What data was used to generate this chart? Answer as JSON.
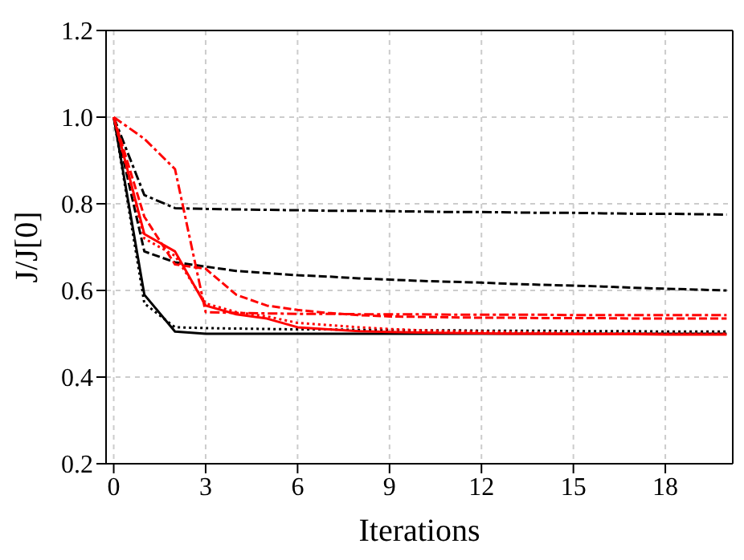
{
  "chart_data": {
    "type": "line",
    "xlabel": "Iterations",
    "ylabel": "J/J[0]",
    "x": [
      0,
      1,
      2,
      3,
      4,
      5,
      6,
      7,
      8,
      9,
      10,
      11,
      12,
      13,
      14,
      15,
      16,
      17,
      18,
      19,
      20
    ],
    "xlim": [
      -0.25,
      20.2
    ],
    "xticks": [
      0,
      3,
      6,
      9,
      12,
      15,
      18
    ],
    "ylim": [
      0.2,
      1.2
    ],
    "yticks": [
      0.2,
      0.4,
      0.6,
      0.8,
      {
        "value": 1,
        "label": "1.0"
      },
      1.2
    ],
    "grid": true,
    "legend": false,
    "marker": "none",
    "series": [
      {
        "color": "#000000",
        "line_style": "solid",
        "values": [
          1,
          0.59,
          0.505,
          0.5,
          0.5,
          0.5,
          0.5,
          0.5,
          0.5,
          0.5,
          0.5,
          0.5,
          0.5,
          0.5,
          0.5,
          0.5,
          0.5,
          0.5,
          0.5,
          0.5,
          0.5
        ]
      },
      {
        "color": "#000000",
        "line_style": "dotted",
        "values": [
          1,
          0.57,
          0.515,
          0.513,
          0.512,
          0.511,
          0.51,
          0.51,
          0.509,
          0.509,
          0.508,
          0.508,
          0.507,
          0.507,
          0.507,
          0.506,
          0.506,
          0.506,
          0.505,
          0.505,
          0.505
        ]
      },
      {
        "color": "#000000",
        "line_style": "dashdot",
        "values": [
          1,
          0.82,
          0.79,
          0.788,
          0.787,
          0.786,
          0.785,
          0.784,
          0.784,
          0.783,
          0.782,
          0.781,
          0.781,
          0.78,
          0.779,
          0.779,
          0.778,
          0.777,
          0.777,
          0.776,
          0.775
        ]
      },
      {
        "color": "#000000",
        "line_style": "dashed",
        "values": [
          1,
          0.69,
          0.665,
          0.655,
          0.645,
          0.64,
          0.635,
          0.632,
          0.628,
          0.625,
          0.622,
          0.62,
          0.618,
          0.615,
          0.613,
          0.611,
          0.609,
          0.606,
          0.604,
          0.602,
          0.6
        ]
      },
      {
        "color": "#ff0000",
        "line_style": "solid",
        "values": [
          1,
          0.73,
          0.69,
          0.565,
          0.545,
          0.535,
          0.515,
          0.51,
          0.506,
          0.504,
          0.503,
          0.502,
          0.501,
          0.5,
          0.5,
          0.499,
          0.499,
          0.499,
          0.498,
          0.498,
          0.498
        ]
      },
      {
        "color": "#ff0000",
        "line_style": "dotted",
        "values": [
          1,
          0.72,
          0.68,
          0.57,
          0.55,
          0.54,
          0.525,
          0.52,
          0.515,
          0.511,
          0.508,
          0.506,
          0.505,
          0.504,
          0.503,
          0.502,
          0.501,
          0.501,
          0.5,
          0.5,
          0.5
        ]
      },
      {
        "color": "#ff0000",
        "line_style": "dashed",
        "values": [
          1,
          0.77,
          0.66,
          0.65,
          0.59,
          0.565,
          0.555,
          0.548,
          0.543,
          0.54,
          0.539,
          0.538,
          0.537,
          0.537,
          0.536,
          0.536,
          0.536,
          0.535,
          0.535,
          0.535,
          0.535
        ]
      },
      {
        "color": "#ff0000",
        "line_style": "dashdot",
        "values": [
          1,
          0.95,
          0.88,
          0.55,
          0.548,
          0.547,
          0.546,
          0.546,
          0.545,
          0.545,
          0.545,
          0.544,
          0.544,
          0.544,
          0.544,
          0.543,
          0.543,
          0.543,
          0.543,
          0.543,
          0.543
        ]
      }
    ]
  }
}
